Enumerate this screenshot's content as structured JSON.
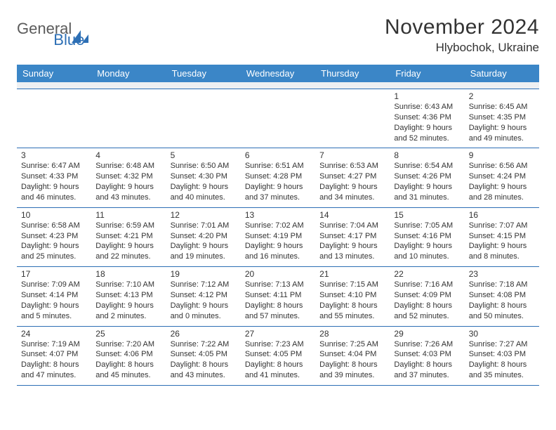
{
  "brand": {
    "general": "General",
    "blue": "Blue"
  },
  "title": {
    "month": "November 2024",
    "location": "Hlybochok, Ukraine"
  },
  "styling": {
    "header_bg": "#3b86c7",
    "border_color": "#2d6fb5",
    "text_color": "#333333",
    "spacer_bg": "#eef0f2",
    "page_bg": "#ffffff"
  },
  "dayheads": [
    "Sunday",
    "Monday",
    "Tuesday",
    "Wednesday",
    "Thursday",
    "Friday",
    "Saturday"
  ],
  "weeks": [
    [
      {
        "n": "",
        "sr": "",
        "ss": "",
        "dl": ""
      },
      {
        "n": "",
        "sr": "",
        "ss": "",
        "dl": ""
      },
      {
        "n": "",
        "sr": "",
        "ss": "",
        "dl": ""
      },
      {
        "n": "",
        "sr": "",
        "ss": "",
        "dl": ""
      },
      {
        "n": "",
        "sr": "",
        "ss": "",
        "dl": ""
      },
      {
        "n": "1",
        "sr": "Sunrise: 6:43 AM",
        "ss": "Sunset: 4:36 PM",
        "dl": "Daylight: 9 hours and 52 minutes."
      },
      {
        "n": "2",
        "sr": "Sunrise: 6:45 AM",
        "ss": "Sunset: 4:35 PM",
        "dl": "Daylight: 9 hours and 49 minutes."
      }
    ],
    [
      {
        "n": "3",
        "sr": "Sunrise: 6:47 AM",
        "ss": "Sunset: 4:33 PM",
        "dl": "Daylight: 9 hours and 46 minutes."
      },
      {
        "n": "4",
        "sr": "Sunrise: 6:48 AM",
        "ss": "Sunset: 4:32 PM",
        "dl": "Daylight: 9 hours and 43 minutes."
      },
      {
        "n": "5",
        "sr": "Sunrise: 6:50 AM",
        "ss": "Sunset: 4:30 PM",
        "dl": "Daylight: 9 hours and 40 minutes."
      },
      {
        "n": "6",
        "sr": "Sunrise: 6:51 AM",
        "ss": "Sunset: 4:28 PM",
        "dl": "Daylight: 9 hours and 37 minutes."
      },
      {
        "n": "7",
        "sr": "Sunrise: 6:53 AM",
        "ss": "Sunset: 4:27 PM",
        "dl": "Daylight: 9 hours and 34 minutes."
      },
      {
        "n": "8",
        "sr": "Sunrise: 6:54 AM",
        "ss": "Sunset: 4:26 PM",
        "dl": "Daylight: 9 hours and 31 minutes."
      },
      {
        "n": "9",
        "sr": "Sunrise: 6:56 AM",
        "ss": "Sunset: 4:24 PM",
        "dl": "Daylight: 9 hours and 28 minutes."
      }
    ],
    [
      {
        "n": "10",
        "sr": "Sunrise: 6:58 AM",
        "ss": "Sunset: 4:23 PM",
        "dl": "Daylight: 9 hours and 25 minutes."
      },
      {
        "n": "11",
        "sr": "Sunrise: 6:59 AM",
        "ss": "Sunset: 4:21 PM",
        "dl": "Daylight: 9 hours and 22 minutes."
      },
      {
        "n": "12",
        "sr": "Sunrise: 7:01 AM",
        "ss": "Sunset: 4:20 PM",
        "dl": "Daylight: 9 hours and 19 minutes."
      },
      {
        "n": "13",
        "sr": "Sunrise: 7:02 AM",
        "ss": "Sunset: 4:19 PM",
        "dl": "Daylight: 9 hours and 16 minutes."
      },
      {
        "n": "14",
        "sr": "Sunrise: 7:04 AM",
        "ss": "Sunset: 4:17 PM",
        "dl": "Daylight: 9 hours and 13 minutes."
      },
      {
        "n": "15",
        "sr": "Sunrise: 7:05 AM",
        "ss": "Sunset: 4:16 PM",
        "dl": "Daylight: 9 hours and 10 minutes."
      },
      {
        "n": "16",
        "sr": "Sunrise: 7:07 AM",
        "ss": "Sunset: 4:15 PM",
        "dl": "Daylight: 9 hours and 8 minutes."
      }
    ],
    [
      {
        "n": "17",
        "sr": "Sunrise: 7:09 AM",
        "ss": "Sunset: 4:14 PM",
        "dl": "Daylight: 9 hours and 5 minutes."
      },
      {
        "n": "18",
        "sr": "Sunrise: 7:10 AM",
        "ss": "Sunset: 4:13 PM",
        "dl": "Daylight: 9 hours and 2 minutes."
      },
      {
        "n": "19",
        "sr": "Sunrise: 7:12 AM",
        "ss": "Sunset: 4:12 PM",
        "dl": "Daylight: 9 hours and 0 minutes."
      },
      {
        "n": "20",
        "sr": "Sunrise: 7:13 AM",
        "ss": "Sunset: 4:11 PM",
        "dl": "Daylight: 8 hours and 57 minutes."
      },
      {
        "n": "21",
        "sr": "Sunrise: 7:15 AM",
        "ss": "Sunset: 4:10 PM",
        "dl": "Daylight: 8 hours and 55 minutes."
      },
      {
        "n": "22",
        "sr": "Sunrise: 7:16 AM",
        "ss": "Sunset: 4:09 PM",
        "dl": "Daylight: 8 hours and 52 minutes."
      },
      {
        "n": "23",
        "sr": "Sunrise: 7:18 AM",
        "ss": "Sunset: 4:08 PM",
        "dl": "Daylight: 8 hours and 50 minutes."
      }
    ],
    [
      {
        "n": "24",
        "sr": "Sunrise: 7:19 AM",
        "ss": "Sunset: 4:07 PM",
        "dl": "Daylight: 8 hours and 47 minutes."
      },
      {
        "n": "25",
        "sr": "Sunrise: 7:20 AM",
        "ss": "Sunset: 4:06 PM",
        "dl": "Daylight: 8 hours and 45 minutes."
      },
      {
        "n": "26",
        "sr": "Sunrise: 7:22 AM",
        "ss": "Sunset: 4:05 PM",
        "dl": "Daylight: 8 hours and 43 minutes."
      },
      {
        "n": "27",
        "sr": "Sunrise: 7:23 AM",
        "ss": "Sunset: 4:05 PM",
        "dl": "Daylight: 8 hours and 41 minutes."
      },
      {
        "n": "28",
        "sr": "Sunrise: 7:25 AM",
        "ss": "Sunset: 4:04 PM",
        "dl": "Daylight: 8 hours and 39 minutes."
      },
      {
        "n": "29",
        "sr": "Sunrise: 7:26 AM",
        "ss": "Sunset: 4:03 PM",
        "dl": "Daylight: 8 hours and 37 minutes."
      },
      {
        "n": "30",
        "sr": "Sunrise: 7:27 AM",
        "ss": "Sunset: 4:03 PM",
        "dl": "Daylight: 8 hours and 35 minutes."
      }
    ]
  ]
}
